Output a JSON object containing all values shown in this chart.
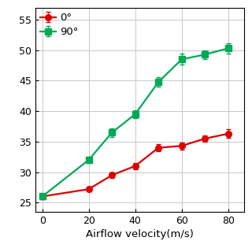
{
  "x": [
    0,
    20,
    30,
    40,
    50,
    60,
    70,
    80
  ],
  "y_0deg": [
    26,
    27.2,
    29.5,
    31.0,
    34.0,
    34.3,
    35.5,
    36.3
  ],
  "y_90deg": [
    26,
    32.0,
    36.5,
    39.5,
    44.8,
    48.5,
    49.3,
    50.3
  ],
  "err_0deg": [
    0.4,
    0.4,
    0.5,
    0.5,
    0.6,
    0.6,
    0.5,
    0.7
  ],
  "err_90deg": [
    0.5,
    0.5,
    0.7,
    0.6,
    0.8,
    0.9,
    0.7,
    0.8
  ],
  "color_0deg": "#dd0000",
  "color_90deg": "#00aa55",
  "marker_0deg": "o",
  "marker_90deg": "s",
  "label_0deg": "0°",
  "label_90deg": "90°",
  "xlabel": "Airflow velocity(m/s)",
  "xlim": [
    -3,
    87
  ],
  "ylim": [
    23.5,
    57
  ],
  "yticks": [
    25,
    30,
    35,
    40,
    45,
    50,
    55
  ],
  "xticks": [
    0,
    20,
    40,
    60,
    80
  ],
  "grid_color": "#c8c8c8",
  "background_color": "#ffffff",
  "linewidth": 1.6,
  "markersize": 5.5,
  "capsize": 2.5,
  "elinewidth": 1.0
}
